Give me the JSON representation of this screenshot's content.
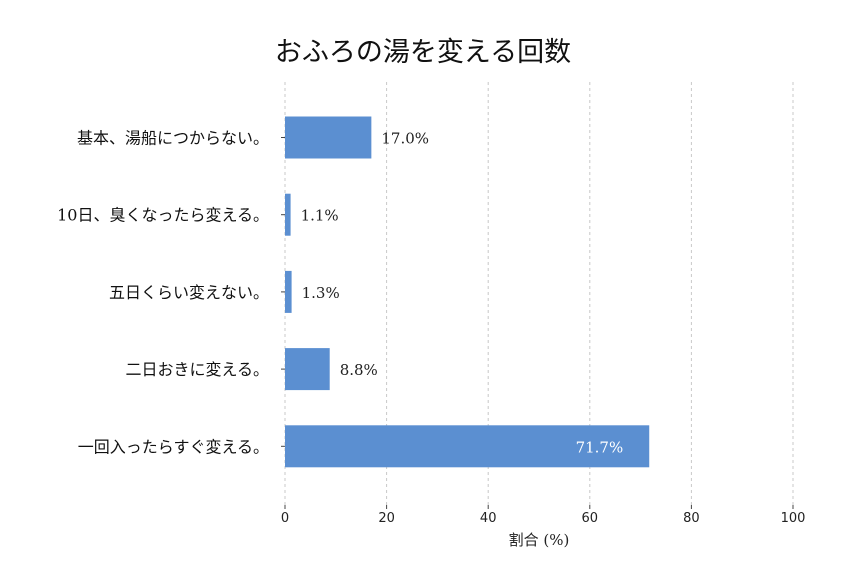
{
  "chart_data": {
    "type": "bar",
    "orientation": "horizontal",
    "title": "おふろの湯を変える回数",
    "xlabel": "割合 (%)",
    "ylabel": "",
    "xlim": [
      0,
      100
    ],
    "xticks": [
      0,
      20,
      40,
      60,
      80,
      100
    ],
    "grid": "vertical dashed",
    "bar_color": "#5b8fd1",
    "categories": [
      "基本、湯船につからない。",
      "10日、臭くなったら変える。",
      "五日くらい変えない。",
      "二日おきに変える。",
      "一回入ったらすぐ変える。"
    ],
    "values": [
      17.0,
      1.1,
      1.3,
      8.8,
      71.7
    ],
    "value_labels": [
      "17.0%",
      "1.1%",
      "1.3%",
      "8.8%",
      "71.7%"
    ]
  }
}
